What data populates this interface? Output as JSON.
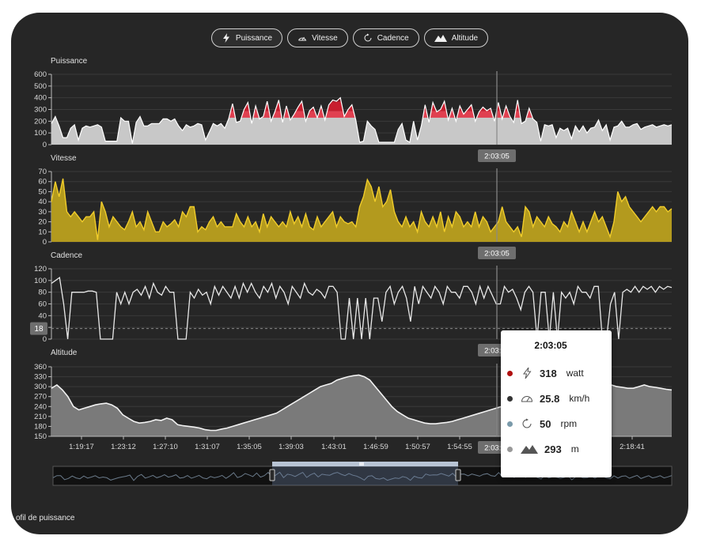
{
  "toolbar": {
    "buttons": [
      {
        "label": "Puissance",
        "icon": "bolt-icon"
      },
      {
        "label": "Vitesse",
        "icon": "speedometer-icon"
      },
      {
        "label": "Cadence",
        "icon": "rotate-icon"
      },
      {
        "label": "Altitude",
        "icon": "mountain-icon"
      }
    ]
  },
  "cursor_time": "2:03:05",
  "cadence_threshold_label": "18",
  "footer_label": "ofil de puissance",
  "x_axis_ticks": [
    "1:19:17",
    "1:23:12",
    "1:27:10",
    "1:31:07",
    "1:35:05",
    "1:39:03",
    "1:43:01",
    "1:46:59",
    "1:50:57",
    "1:54:55",
    "1:58:53",
    "2:03:05",
    "2:18:41"
  ],
  "tooltip": {
    "time": "2:03:05",
    "rows": [
      {
        "name": "power",
        "value": "318",
        "unit": "watt",
        "dot_color": "#b01010",
        "icon": "bolt-icon"
      },
      {
        "name": "speed",
        "value": "25.8",
        "unit": "km/h",
        "dot_color": "#333333",
        "icon": "speedometer-icon"
      },
      {
        "name": "cadence",
        "value": "50",
        "unit": "rpm",
        "dot_color": "#7a9aaa",
        "icon": "rotate-icon"
      },
      {
        "name": "altitude",
        "value": "293",
        "unit": "m",
        "dot_color": "#999999",
        "icon": "mountain-icon"
      }
    ]
  },
  "colors": {
    "background": "#262626",
    "power_fill": "#c8c8c8",
    "power_zone": "#c81e2e",
    "speed_fill": "#b39a1e",
    "speed_line": "#f0cc2a",
    "cadence_line": "#e8e8e8",
    "altitude_fill": "#7a7a7a",
    "altitude_line": "#f2f2f2"
  },
  "chart_data": [
    {
      "type": "area",
      "title": "Puissance",
      "ylim": [
        0,
        600
      ],
      "yticks": [
        "600",
        "500",
        "400",
        "300",
        "200",
        "100",
        "0"
      ],
      "values": [
        180,
        240,
        160,
        60,
        60,
        140,
        170,
        40,
        140,
        160,
        150,
        160,
        170,
        150,
        30,
        30,
        30,
        30,
        230,
        200,
        200,
        10,
        190,
        240,
        160,
        160,
        180,
        180,
        180,
        220,
        220,
        200,
        220,
        160,
        120,
        170,
        150,
        160,
        180,
        170,
        40,
        110,
        180,
        160,
        180,
        140,
        220,
        350,
        190,
        200,
        300,
        360,
        180,
        330,
        220,
        240,
        370,
        200,
        280,
        380,
        190,
        330,
        210,
        260,
        320,
        370,
        200,
        290,
        320,
        230,
        330,
        210,
        340,
        380,
        370,
        400,
        240,
        300,
        340,
        210,
        20,
        30,
        200,
        160,
        130,
        20,
        20,
        20,
        20,
        20,
        130,
        180,
        40,
        20,
        200,
        40,
        160,
        340,
        190,
        360,
        280,
        300,
        370,
        210,
        310,
        200,
        330,
        260,
        300,
        340,
        200,
        280,
        320,
        290,
        310,
        200,
        360,
        220,
        330,
        240,
        190,
        380,
        180,
        200,
        310,
        220,
        190,
        30,
        170,
        160,
        170,
        60,
        140,
        120,
        140,
        50,
        160,
        110,
        160,
        100,
        140,
        150,
        210,
        120,
        170,
        40,
        150,
        160,
        200,
        150,
        150,
        170,
        180,
        130,
        150,
        160,
        170,
        150,
        160,
        170,
        160,
        170
      ],
      "zone_threshold": 230
    },
    {
      "type": "area",
      "title": "Vitesse",
      "ylim": [
        0,
        70
      ],
      "yticks": [
        "70",
        "60",
        "50",
        "40",
        "30",
        "20",
        "10",
        "0"
      ],
      "values": [
        40,
        60,
        45,
        63,
        30,
        25,
        30,
        25,
        20,
        25,
        25,
        30,
        2,
        40,
        30,
        15,
        25,
        20,
        15,
        12,
        20,
        30,
        15,
        20,
        12,
        30,
        20,
        10,
        10,
        20,
        15,
        18,
        22,
        15,
        30,
        25,
        35,
        35,
        10,
        15,
        12,
        20,
        25,
        15,
        20,
        15,
        15,
        15,
        28,
        20,
        15,
        25,
        15,
        20,
        10,
        28,
        15,
        25,
        20,
        15,
        20,
        15,
        30,
        18,
        25,
        15,
        28,
        15,
        12,
        25,
        15,
        20,
        25,
        30,
        15,
        25,
        20,
        18,
        20,
        15,
        35,
        45,
        62,
        55,
        40,
        55,
        35,
        40,
        52,
        30,
        20,
        15,
        25,
        15,
        20,
        10,
        30,
        20,
        15,
        25,
        15,
        30,
        10,
        25,
        15,
        30,
        25,
        15,
        20,
        15,
        30,
        15,
        25,
        20,
        10,
        15,
        20,
        35,
        20,
        15,
        10,
        15,
        5,
        35,
        30,
        15,
        25,
        20,
        15,
        25,
        18,
        15,
        10,
        20,
        15,
        30,
        20,
        10,
        20,
        10,
        20,
        30,
        20,
        25,
        15,
        5,
        20,
        50,
        40,
        45,
        35,
        30,
        25,
        20,
        25,
        30,
        35,
        30,
        35,
        35,
        30,
        33
      ]
    },
    {
      "type": "line",
      "title": "Cadence",
      "ylim": [
        0,
        120
      ],
      "yticks": [
        "120",
        "100",
        "80",
        "60",
        "40",
        "20",
        "0"
      ],
      "threshold": 18,
      "values": [
        95,
        100,
        105,
        60,
        0,
        80,
        80,
        80,
        80,
        82,
        82,
        80,
        0,
        0,
        0,
        0,
        80,
        60,
        80,
        60,
        80,
        85,
        75,
        90,
        70,
        95,
        80,
        75,
        90,
        80,
        80,
        0,
        0,
        0,
        80,
        70,
        85,
        75,
        80,
        60,
        90,
        75,
        90,
        80,
        70,
        90,
        70,
        95,
        80,
        95,
        80,
        70,
        90,
        80,
        95,
        70,
        90,
        80,
        60,
        90,
        80,
        70,
        95,
        80,
        75,
        85,
        80,
        70,
        90,
        90,
        80,
        0,
        0,
        70,
        0,
        70,
        0,
        70,
        0,
        70,
        70,
        30,
        80,
        90,
        60,
        80,
        90,
        70,
        30,
        90,
        60,
        90,
        80,
        70,
        90,
        80,
        60,
        90,
        80,
        80,
        70,
        90,
        90,
        80,
        60,
        90,
        70,
        90,
        75,
        60,
        60,
        90,
        80,
        85,
        70,
        50,
        80,
        90,
        80,
        0,
        80,
        80,
        0,
        80,
        0,
        80,
        70,
        80,
        60,
        90,
        80,
        80,
        70,
        90,
        90,
        0,
        0,
        60,
        80,
        0,
        80,
        85,
        80,
        90,
        80,
        90,
        85,
        90,
        80,
        90,
        85,
        90,
        88
      ]
    },
    {
      "type": "area",
      "title": "Altitude",
      "ylim": [
        150,
        360
      ],
      "yticks": [
        "360",
        "330",
        "300",
        "270",
        "240",
        "210",
        "180",
        "150"
      ],
      "x_labels": [
        "1:19:17",
        "1:23:12",
        "1:27:10",
        "1:31:07",
        "1:35:05",
        "1:39:03",
        "1:43:01",
        "1:46:59",
        "1:50:57",
        "1:54:55",
        "1:58:53",
        "2:03:05",
        "2:18:41"
      ],
      "values": [
        295,
        305,
        290,
        270,
        240,
        230,
        235,
        240,
        245,
        248,
        250,
        245,
        235,
        215,
        205,
        195,
        190,
        192,
        195,
        200,
        198,
        205,
        200,
        185,
        182,
        180,
        178,
        175,
        170,
        168,
        168,
        172,
        175,
        180,
        185,
        190,
        195,
        200,
        205,
        210,
        215,
        220,
        230,
        240,
        250,
        260,
        270,
        280,
        290,
        300,
        305,
        310,
        320,
        325,
        330,
        333,
        335,
        330,
        320,
        300,
        280,
        260,
        240,
        225,
        215,
        205,
        200,
        195,
        190,
        188,
        188,
        190,
        192,
        195,
        200,
        205,
        210,
        215,
        220,
        225,
        230,
        235,
        240,
        250,
        260,
        270,
        280,
        290,
        295,
        300,
        305,
        310,
        300,
        295,
        290,
        285,
        285,
        290,
        295,
        300,
        305,
        308,
        305,
        300,
        298,
        295,
        295,
        300,
        305,
        300,
        298,
        295,
        292,
        290
      ]
    }
  ]
}
